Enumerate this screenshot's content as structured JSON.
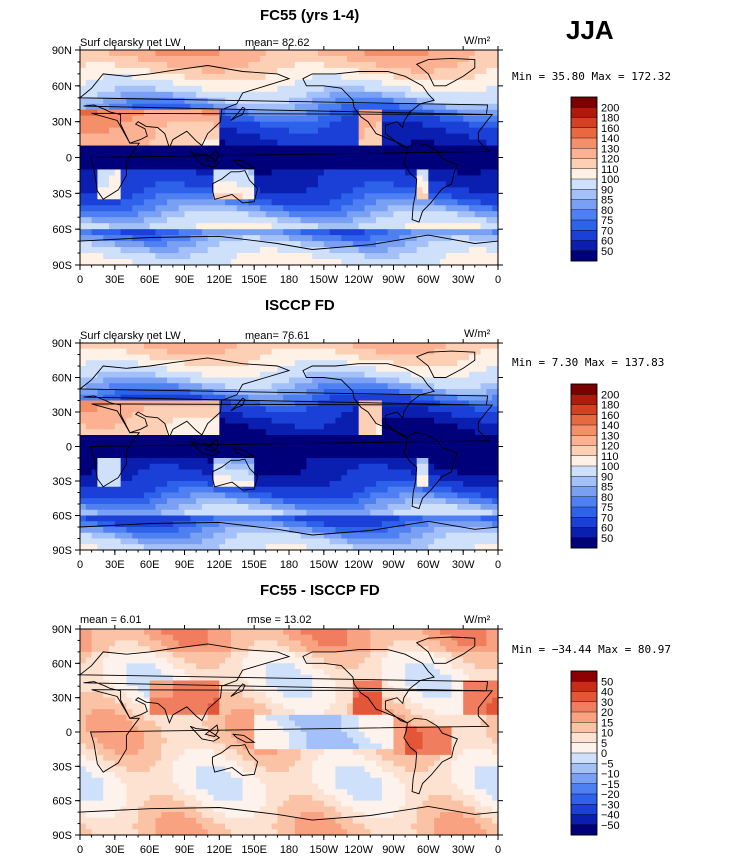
{
  "season_label": "JJA",
  "colors": {
    "ramp_abs": [
      "#00007a",
      "#0a1fb0",
      "#1b40d8",
      "#2e62ea",
      "#4f80f2",
      "#7aa0f4",
      "#a3c0f8",
      "#cfe0fb",
      "#fff1e6",
      "#fdd0b6",
      "#fbb192",
      "#f58f6a",
      "#e86842",
      "#d44022",
      "#b01a0d",
      "#7a0000"
    ],
    "ramp_diff": [
      "#00007a",
      "#0a1fb0",
      "#1b40d8",
      "#2e62ea",
      "#4f80f2",
      "#7aa0f4",
      "#a3c0f8",
      "#cfe0fb",
      "#fdf3ec",
      "#fde2d2",
      "#fbc3a5",
      "#f8a282",
      "#f07e5e",
      "#e45638",
      "#c72c18",
      "#8b0000"
    ],
    "land_outline": "#000000"
  },
  "axes": {
    "x_ticks": [
      "0",
      "30E",
      "60E",
      "90E",
      "120E",
      "150E",
      "180",
      "150W",
      "120W",
      "90W",
      "60W",
      "30W",
      "0"
    ],
    "y_ticks": [
      "90N",
      "60N",
      "30N",
      "0",
      "30S",
      "60S",
      "90S"
    ]
  },
  "panels": [
    {
      "title": "FC55 (yrs 1-4)",
      "left_label": "Surf clearsky net LW",
      "stat_label": "mean=",
      "stat_value": "82.62",
      "extra_label": "",
      "extra_value": "",
      "units": "W/m²",
      "min_max_text": "Min =   35.80 Max = 172.32",
      "legend_levels": [
        "200",
        "180",
        "160",
        "140",
        "130",
        "120",
        "110",
        "100",
        "90",
        "85",
        "80",
        "75",
        "70",
        "60",
        "50"
      ],
      "map_mean": 82.62
    },
    {
      "title": "ISCCP FD",
      "left_label": "Surf clearsky net LW",
      "stat_label": "mean=",
      "stat_value": "76.61",
      "extra_label": "",
      "extra_value": "",
      "units": "W/m²",
      "min_max_text": "Min =    7.30 Max = 137.83",
      "legend_levels": [
        "200",
        "180",
        "160",
        "140",
        "130",
        "120",
        "110",
        "100",
        "90",
        "85",
        "80",
        "75",
        "70",
        "60",
        "50"
      ],
      "map_mean": 76.61
    },
    {
      "title": "FC55 - ISCCP FD",
      "left_label": "",
      "stat_label": "mean =",
      "stat_value": "6.01",
      "extra_label": "rmse =",
      "extra_value": "13.02",
      "units": "W/m²",
      "min_max_text": "Min = −34.44 Max =  80.97",
      "legend_levels": [
        "50",
        "40",
        "30",
        "20",
        "15",
        "10",
        "5",
        "0",
        "−5",
        "−10",
        "−15",
        "−20",
        "−30",
        "−40",
        "−50"
      ],
      "map_mean": 6.01
    }
  ]
}
